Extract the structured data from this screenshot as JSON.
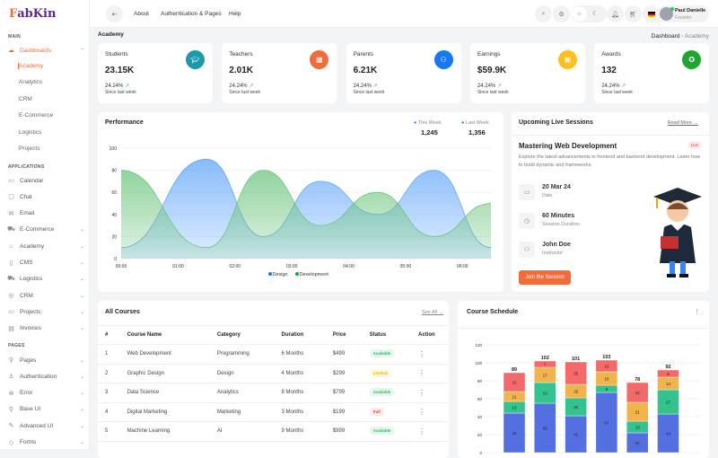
{
  "brand": {
    "logo": "FabKin"
  },
  "sidebar": {
    "sections": {
      "main": "MAIN",
      "applications": "APPLICATIONS",
      "pages": "PAGES"
    },
    "dashboards": "Dashboards",
    "sub_items": [
      "Academy",
      "Analytics",
      "CRM",
      "E-Commerce",
      "Logistics",
      "Projects"
    ],
    "apps": [
      {
        "label": "Calendar",
        "icon": "calendar-icon",
        "chev": false
      },
      {
        "label": "Chat",
        "icon": "chat-icon",
        "chev": false
      },
      {
        "label": "Email",
        "icon": "mail-icon",
        "chev": false
      },
      {
        "label": "E-Commerce",
        "icon": "cart-icon",
        "chev": true
      },
      {
        "label": "Academy",
        "icon": "academy-icon",
        "chev": true
      },
      {
        "label": "CMS",
        "icon": "book-icon",
        "chev": true
      },
      {
        "label": "Logistics",
        "icon": "truck-icon",
        "chev": true
      },
      {
        "label": "CRM",
        "icon": "crm-icon",
        "chev": true
      },
      {
        "label": "Projects",
        "icon": "monitor-icon",
        "chev": true
      },
      {
        "label": "Invoices",
        "icon": "invoice-icon",
        "chev": true
      }
    ],
    "pages": [
      {
        "label": "Pages",
        "icon": "sitemap-icon"
      },
      {
        "label": "Authentication",
        "icon": "user-icon"
      },
      {
        "label": "Error",
        "icon": "bug-icon"
      },
      {
        "label": "Base UI",
        "icon": "pin-icon"
      },
      {
        "label": "Advanced UI",
        "icon": "pen-icon"
      },
      {
        "label": "Forms",
        "icon": "forms-icon"
      }
    ]
  },
  "header": {
    "nav": [
      "About",
      "Authentication & Pages",
      "Help"
    ],
    "user_name": "Paul Danielle",
    "user_role": "Founder"
  },
  "page": {
    "title": "Academy",
    "breadcrumb": [
      "Dashboard",
      "Academy"
    ]
  },
  "stats": [
    {
      "label": "Students",
      "value": "23.15K",
      "pct": "24.24%",
      "since": "Since last week",
      "color": "#1b9aaa",
      "icon": "graduation-cap-icon"
    },
    {
      "label": "Teachers",
      "value": "2.01K",
      "pct": "24.24%",
      "since": "Since last week",
      "color": "#f26b3a",
      "icon": "chalkboard-icon"
    },
    {
      "label": "Parents",
      "value": "6.21K",
      "pct": "24.24%",
      "since": "Since last week",
      "color": "#1877f2",
      "icon": "users-icon"
    },
    {
      "label": "Earnings",
      "value": "$59.9K",
      "pct": "24.24%",
      "since": "Since last week",
      "color": "#fbbf24",
      "icon": "wallet-icon"
    },
    {
      "label": "Awards",
      "value": "132",
      "pct": "24.24%",
      "since": "Since last week",
      "color": "#1ea532",
      "icon": "award-icon"
    }
  ],
  "performance": {
    "title": "Performance",
    "this_week_label": "This Week",
    "this_week": "1,245",
    "last_week_label": "Last Week",
    "last_week": "1,356"
  },
  "chart_data": [
    {
      "type": "area",
      "title": "Performance",
      "x_ticks": [
        "00:00",
        "01:00",
        "02:00",
        "03:00",
        "04:00",
        "05:00",
        "06:00"
      ],
      "ylim": [
        0,
        100
      ],
      "y_ticks": [
        0,
        20,
        40,
        60,
        80,
        100
      ],
      "grid": true,
      "legend": "bottom",
      "x": [
        0,
        1.5,
        2.5,
        3.5,
        4.5,
        5.5,
        6.5
      ],
      "series": [
        {
          "name": "Design",
          "color": "#60a5fa",
          "values": [
            10,
            90,
            20,
            70,
            40,
            80,
            10
          ]
        },
        {
          "name": "Development",
          "color": "#6cc47d",
          "values": [
            80,
            10,
            80,
            30,
            60,
            20,
            50
          ]
        }
      ]
    },
    {
      "type": "bar",
      "stacked": true,
      "title": "Course Schedule",
      "ylim": [
        0,
        120
      ],
      "y_ticks": [
        0,
        20,
        40,
        60,
        80,
        100,
        120
      ],
      "grid": true,
      "totals": [
        89,
        102,
        101,
        103,
        78,
        92
      ],
      "series": [
        {
          "color": "#5470e0",
          "values": [
            44,
            55,
            41,
            67,
            22,
            43
          ]
        },
        {
          "color": "#34c38f",
          "values": [
            13,
            23,
            20,
            8,
            13,
            27
          ]
        },
        {
          "color": "#f1b44c",
          "values": [
            11,
            17,
            15,
            15,
            21,
            14
          ]
        },
        {
          "color": "#f46a6a",
          "values": [
            21,
            7,
            25,
            13,
            22,
            8
          ]
        }
      ]
    }
  ],
  "session": {
    "title": "Upcoming Live Sessions",
    "read_more": "Read More →",
    "name": "Mastering Web Development",
    "badge": "Live",
    "desc": "Explore the latest advancements in frontend and backend development. Learn how to build dynamic and frameworks.",
    "items": [
      {
        "value": "20 Mar 24",
        "label": "Date",
        "icon": "calendar-icon"
      },
      {
        "value": "60 Minutes",
        "label": "Session Duration",
        "icon": "clock-icon"
      },
      {
        "value": "John Doe",
        "label": "Instructor",
        "icon": "users-icon"
      }
    ],
    "button": "Join the Session"
  },
  "courses": {
    "title": "All Courses",
    "see_all": "See All →",
    "columns": [
      "#",
      "Course Name",
      "Category",
      "Duration",
      "Price",
      "Status",
      "Action"
    ],
    "rows": [
      [
        "1",
        "Web Development",
        "Programming",
        "6 Months",
        "$499",
        "Available"
      ],
      [
        "2",
        "Graphic Design",
        "Design",
        "4 Months",
        "$299",
        "Limited"
      ],
      [
        "3",
        "Data Science",
        "Analytics",
        "8 Months",
        "$799",
        "Available"
      ],
      [
        "4",
        "Digital Marketing",
        "Marketing",
        "3 Months",
        "$199",
        "Full"
      ],
      [
        "5",
        "Machine Learning",
        "AI",
        "9 Months",
        "$999",
        "Available"
      ]
    ]
  },
  "schedule": {
    "title": "Course Schedule"
  }
}
